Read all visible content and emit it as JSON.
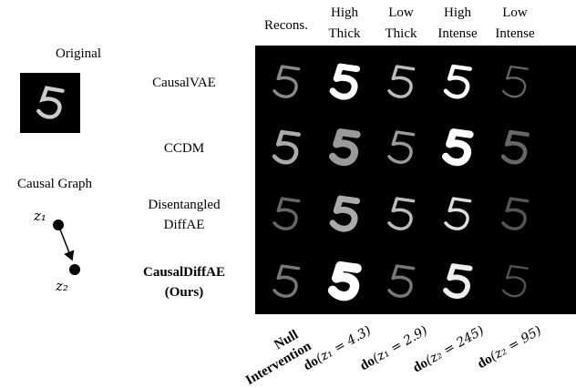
{
  "original": {
    "label": "Original"
  },
  "causal_graph": {
    "label": "Causal Graph",
    "nodes": [
      {
        "label": "z₁"
      },
      {
        "label": "z₂"
      }
    ]
  },
  "columns": [
    {
      "lines": [
        "Recons."
      ]
    },
    {
      "lines": [
        "High",
        "Thick"
      ]
    },
    {
      "lines": [
        "Low",
        "Thick"
      ]
    },
    {
      "lines": [
        "High",
        "Intense"
      ]
    },
    {
      "lines": [
        "Low",
        "Intense"
      ]
    }
  ],
  "rows": [
    {
      "lines": [
        "CausalVAE"
      ]
    },
    {
      "lines": [
        "CCDM"
      ]
    },
    {
      "lines": [
        "Disentangled",
        "DiffAE"
      ]
    },
    {
      "lines": [
        "CausalDiffAE",
        "(Ours)"
      ]
    }
  ],
  "interventions": [
    {
      "lines": [
        "Null",
        "Intervention"
      ]
    },
    {
      "op": "do",
      "arg": "(z₁ = 4.3)"
    },
    {
      "op": "do",
      "arg": "(z₁ = 2.9)"
    },
    {
      "op": "do",
      "arg": "(z₂ = 245)"
    },
    {
      "op": "do",
      "arg": "(z₂ = 95)"
    }
  ]
}
